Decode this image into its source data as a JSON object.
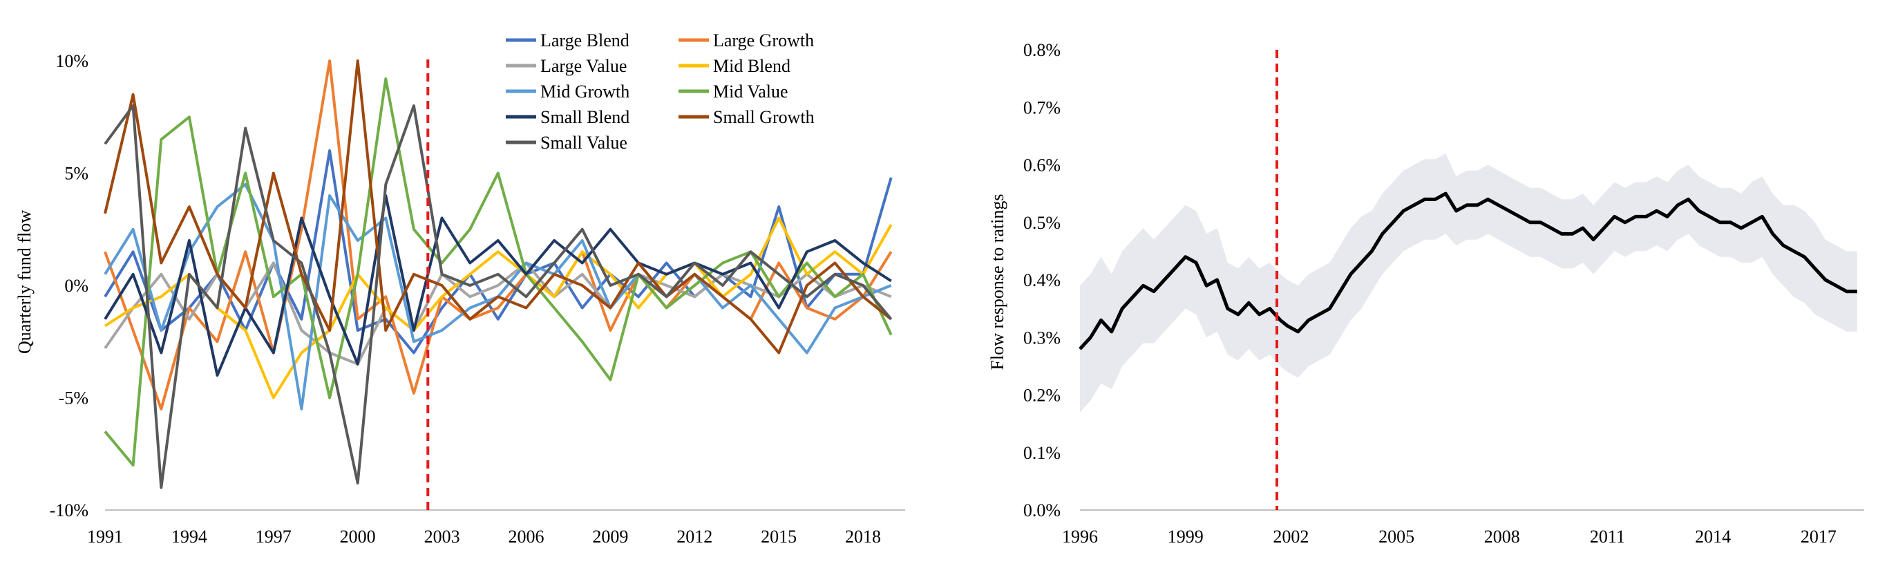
{
  "left_chart": {
    "ylabel": "Quarterly fund flow",
    "y_ticks": [
      "10%",
      "5%",
      "0%",
      "-5%",
      "-10%"
    ],
    "x_ticks": [
      "1991",
      "1994",
      "1997",
      "2000",
      "2003",
      "2006",
      "2009",
      "2012",
      "2015",
      "2018"
    ]
  },
  "right_chart": {
    "ylabel": "Flow response to ratings",
    "y_ticks": [
      "0.8%",
      "0.7%",
      "0.6%",
      "0.5%",
      "0.4%",
      "0.3%",
      "0.2%",
      "0.1%",
      "0.0%"
    ],
    "x_ticks": [
      "1996",
      "1999",
      "2002",
      "2005",
      "2008",
      "2011",
      "2014",
      "2017"
    ]
  },
  "chart_data": [
    {
      "type": "line",
      "title": "",
      "xlabel": "",
      "ylabel": "Quarterly fund flow",
      "xlim": [
        1991,
        2019.5
      ],
      "ylim": [
        -10,
        10
      ],
      "y_unit": "%",
      "grid": false,
      "legend": "top-center",
      "vline": {
        "x": 2002.5,
        "style": "dashed",
        "color": "#e41a1c"
      },
      "series": [
        {
          "name": "Large Blend",
          "color": "#4472c4",
          "x": [
            1991,
            1992,
            1993,
            1994,
            1995,
            1996,
            1997,
            1998,
            1999,
            2000,
            2001,
            2002,
            2003,
            2004,
            2005,
            2006,
            2007,
            2008,
            2009,
            2010,
            2011,
            2012,
            2013,
            2014,
            2015,
            2016,
            2017,
            2018,
            2019
          ],
          "y": [
            -0.5,
            1.5,
            -2.0,
            -1.0,
            0.5,
            -2.0,
            1.0,
            -1.5,
            6.0,
            -2.0,
            -1.5,
            -3.0,
            -1.0,
            0.5,
            -1.5,
            0.5,
            1.0,
            -1.0,
            0.5,
            -0.5,
            1.0,
            -0.5,
            0.5,
            -0.5,
            3.5,
            -1.0,
            0.5,
            0.5,
            4.8
          ]
        },
        {
          "name": "Large Growth",
          "color": "#ed7d31",
          "x": [
            1991,
            1992,
            1993,
            1994,
            1995,
            1996,
            1997,
            1998,
            1999,
            2000,
            2001,
            2002,
            2003,
            2004,
            2005,
            2006,
            2007,
            2008,
            2009,
            2010,
            2011,
            2012,
            2013,
            2014,
            2015,
            2016,
            2017,
            2018,
            2019
          ],
          "y": [
            1.5,
            -2.0,
            -5.5,
            -1.0,
            -2.5,
            1.5,
            -3.0,
            2.5,
            10.0,
            -1.5,
            -0.5,
            -4.8,
            -0.5,
            -1.5,
            -1.0,
            0.5,
            -0.5,
            1.5,
            -2.0,
            0.5,
            -1.0,
            0.5,
            -0.5,
            -1.5,
            1.0,
            -1.0,
            -1.5,
            -0.5,
            1.5
          ]
        },
        {
          "name": "Large Value",
          "color": "#a5a5a5",
          "x": [
            1991,
            1992,
            1993,
            1994,
            1995,
            1996,
            1997,
            1998,
            1999,
            2000,
            2001,
            2002,
            2003,
            2004,
            2005,
            2006,
            2007,
            2008,
            2009,
            2010,
            2011,
            2012,
            2013,
            2014,
            2015,
            2016,
            2017,
            2018,
            2019
          ],
          "y": [
            -2.8,
            -1.0,
            0.5,
            -1.5,
            0.5,
            -1.0,
            1.0,
            -2.0,
            -3.0,
            -3.5,
            -1.0,
            -2.0,
            0.5,
            -0.5,
            0.0,
            1.0,
            -0.5,
            0.5,
            -1.0,
            0.5,
            0.0,
            -0.5,
            0.5,
            0.0,
            -0.5,
            0.5,
            -0.5,
            0.0,
            -0.5
          ]
        },
        {
          "name": "Mid Blend",
          "color": "#ffc000",
          "x": [
            1991,
            1992,
            1993,
            1994,
            1995,
            1996,
            1997,
            1998,
            1999,
            2000,
            2001,
            2002,
            2003,
            2004,
            2005,
            2006,
            2007,
            2008,
            2009,
            2010,
            2011,
            2012,
            2013,
            2014,
            2015,
            2016,
            2017,
            2018,
            2019
          ],
          "y": [
            -1.8,
            -1.0,
            -0.5,
            0.5,
            -1.0,
            -2.0,
            -5.0,
            -3.0,
            -2.0,
            0.5,
            -1.0,
            -2.0,
            -0.5,
            0.5,
            1.5,
            0.5,
            -0.5,
            1.5,
            0.5,
            -1.0,
            0.5,
            1.0,
            -0.5,
            0.5,
            3.0,
            0.5,
            1.5,
            0.5,
            2.7
          ]
        },
        {
          "name": "Mid Growth",
          "color": "#5b9bd5",
          "x": [
            1991,
            1992,
            1993,
            1994,
            1995,
            1996,
            1997,
            1998,
            1999,
            2000,
            2001,
            2002,
            2003,
            2004,
            2005,
            2006,
            2007,
            2008,
            2009,
            2010,
            2011,
            2012,
            2013,
            2014,
            2015,
            2016,
            2017,
            2018,
            2019
          ],
          "y": [
            0.5,
            2.5,
            -2.0,
            1.5,
            3.5,
            4.5,
            2.0,
            -5.5,
            4.0,
            2.0,
            3.0,
            -2.5,
            -2.0,
            -1.0,
            -0.5,
            1.0,
            0.5,
            2.0,
            -1.0,
            0.5,
            -0.5,
            0.5,
            -1.0,
            0.0,
            -1.5,
            -3.0,
            -1.0,
            -0.5,
            0.0
          ]
        },
        {
          "name": "Mid Value",
          "color": "#70ad47",
          "x": [
            1991,
            1992,
            1993,
            1994,
            1995,
            1996,
            1997,
            1998,
            1999,
            2000,
            2001,
            2002,
            2003,
            2004,
            2005,
            2006,
            2007,
            2008,
            2009,
            2010,
            2011,
            2012,
            2013,
            2014,
            2015,
            2016,
            2017,
            2018,
            2019
          ],
          "y": [
            -6.5,
            -8.0,
            6.5,
            7.5,
            0.5,
            5.0,
            -0.5,
            0.5,
            -5.0,
            0.5,
            9.2,
            2.5,
            1.0,
            2.5,
            5.0,
            0.5,
            -1.0,
            -2.5,
            -4.2,
            0.5,
            -1.0,
            0.0,
            1.0,
            1.5,
            -0.5,
            1.0,
            -0.5,
            0.5,
            -2.2
          ]
        },
        {
          "name": "Small Blend",
          "color": "#1f3864",
          "x": [
            1991,
            1992,
            1993,
            1994,
            1995,
            1996,
            1997,
            1998,
            1999,
            2000,
            2001,
            2002,
            2003,
            2004,
            2005,
            2006,
            2007,
            2008,
            2009,
            2010,
            2011,
            2012,
            2013,
            2014,
            2015,
            2016,
            2017,
            2018,
            2019
          ],
          "y": [
            -1.5,
            0.5,
            -3.0,
            2.0,
            -4.0,
            -1.0,
            -3.0,
            3.0,
            -0.5,
            -3.5,
            4.0,
            -2.0,
            3.0,
            1.0,
            2.0,
            0.5,
            2.0,
            1.0,
            2.5,
            1.0,
            0.5,
            1.0,
            0.5,
            1.0,
            -1.0,
            1.5,
            2.0,
            1.0,
            0.2
          ]
        },
        {
          "name": "Small Growth",
          "color": "#9e480e",
          "x": [
            1991,
            1992,
            1993,
            1994,
            1995,
            1996,
            1997,
            1998,
            1999,
            2000,
            2001,
            2002,
            2003,
            2004,
            2005,
            2006,
            2007,
            2008,
            2009,
            2010,
            2011,
            2012,
            2013,
            2014,
            2015,
            2016,
            2017,
            2018,
            2019
          ],
          "y": [
            3.2,
            8.5,
            1.0,
            3.5,
            0.5,
            -1.0,
            5.0,
            0.5,
            -2.0,
            10.0,
            -2.0,
            0.5,
            0.0,
            -1.5,
            -0.5,
            -1.0,
            0.5,
            0.0,
            -1.0,
            1.0,
            -0.5,
            0.5,
            -0.5,
            -1.5,
            -3.0,
            0.0,
            1.0,
            -0.5,
            -1.5
          ]
        },
        {
          "name": "Small Value",
          "color": "#595959",
          "x": [
            1991,
            1992,
            1993,
            1994,
            1995,
            1996,
            1997,
            1998,
            1999,
            2000,
            2001,
            2002,
            2003,
            2004,
            2005,
            2006,
            2007,
            2008,
            2009,
            2010,
            2011,
            2012,
            2013,
            2014,
            2015,
            2016,
            2017,
            2018,
            2019
          ],
          "y": [
            6.3,
            8.0,
            -9.0,
            0.5,
            -1.0,
            7.0,
            2.0,
            1.0,
            -3.0,
            -8.8,
            4.5,
            8.0,
            0.5,
            0.0,
            0.5,
            -0.5,
            1.0,
            2.5,
            0.0,
            0.5,
            -0.5,
            1.0,
            0.0,
            1.5,
            0.5,
            -0.5,
            0.5,
            0.0,
            -1.5
          ]
        }
      ]
    },
    {
      "type": "area",
      "title": "",
      "xlabel": "",
      "ylabel": "Flow response to ratings",
      "xlim": [
        1996,
        2018.3
      ],
      "ylim": [
        0,
        0.8
      ],
      "y_unit": "%",
      "grid": false,
      "vline": {
        "x": 2001.6,
        "style": "dashed",
        "color": "#e41a1c"
      },
      "series": [
        {
          "name": "",
          "kind": "line",
          "color": "#000000",
          "x": [
            1996.0,
            1996.3,
            1996.6,
            1996.9,
            1997.2,
            1997.5,
            1997.8,
            1998.1,
            1998.4,
            1998.7,
            1999.0,
            1999.3,
            1999.6,
            1999.9,
            2000.2,
            2000.5,
            2000.8,
            2001.1,
            2001.4,
            2001.7,
            2001.9,
            2002.2,
            2002.5,
            2002.8,
            2003.1,
            2003.4,
            2003.7,
            2004.0,
            2004.3,
            2004.6,
            2004.9,
            2005.2,
            2005.5,
            2005.8,
            2006.1,
            2006.4,
            2006.7,
            2007.0,
            2007.3,
            2007.6,
            2007.9,
            2008.2,
            2008.5,
            2008.8,
            2009.1,
            2009.4,
            2009.7,
            2010.0,
            2010.3,
            2010.6,
            2010.9,
            2011.2,
            2011.5,
            2011.8,
            2012.1,
            2012.4,
            2012.7,
            2013.0,
            2013.3,
            2013.6,
            2013.9,
            2014.2,
            2014.5,
            2014.8,
            2015.1,
            2015.4,
            2015.7,
            2016.0,
            2016.3,
            2016.6,
            2016.9,
            2017.2,
            2017.5,
            2017.8,
            2018.1
          ],
          "y": [
            0.28,
            0.3,
            0.33,
            0.31,
            0.35,
            0.37,
            0.39,
            0.38,
            0.4,
            0.42,
            0.44,
            0.43,
            0.39,
            0.4,
            0.35,
            0.34,
            0.36,
            0.34,
            0.35,
            0.33,
            0.32,
            0.31,
            0.33,
            0.34,
            0.35,
            0.38,
            0.41,
            0.43,
            0.45,
            0.48,
            0.5,
            0.52,
            0.53,
            0.54,
            0.54,
            0.55,
            0.52,
            0.53,
            0.53,
            0.54,
            0.53,
            0.52,
            0.51,
            0.5,
            0.5,
            0.49,
            0.48,
            0.48,
            0.49,
            0.47,
            0.49,
            0.51,
            0.5,
            0.51,
            0.51,
            0.52,
            0.51,
            0.53,
            0.54,
            0.52,
            0.51,
            0.5,
            0.5,
            0.49,
            0.5,
            0.51,
            0.48,
            0.46,
            0.45,
            0.44,
            0.42,
            0.4,
            0.39,
            0.38,
            0.38
          ]
        },
        {
          "name": "",
          "kind": "band",
          "color": "#e7e9ef",
          "x": [
            1996.0,
            1996.3,
            1996.6,
            1996.9,
            1997.2,
            1997.5,
            1997.8,
            1998.1,
            1998.4,
            1998.7,
            1999.0,
            1999.3,
            1999.6,
            1999.9,
            2000.2,
            2000.5,
            2000.8,
            2001.1,
            2001.4,
            2001.7,
            2001.9,
            2002.2,
            2002.5,
            2002.8,
            2003.1,
            2003.4,
            2003.7,
            2004.0,
            2004.3,
            2004.6,
            2004.9,
            2005.2,
            2005.5,
            2005.8,
            2006.1,
            2006.4,
            2006.7,
            2007.0,
            2007.3,
            2007.6,
            2007.9,
            2008.2,
            2008.5,
            2008.8,
            2009.1,
            2009.4,
            2009.7,
            2010.0,
            2010.3,
            2010.6,
            2010.9,
            2011.2,
            2011.5,
            2011.8,
            2012.1,
            2012.4,
            2012.7,
            2013.0,
            2013.3,
            2013.6,
            2013.9,
            2014.2,
            2014.5,
            2014.8,
            2015.1,
            2015.4,
            2015.7,
            2016.0,
            2016.3,
            2016.6,
            2016.9,
            2017.2,
            2017.5,
            2017.8,
            2018.1
          ],
          "lower": [
            0.17,
            0.19,
            0.22,
            0.21,
            0.25,
            0.27,
            0.29,
            0.29,
            0.31,
            0.33,
            0.35,
            0.34,
            0.3,
            0.31,
            0.27,
            0.26,
            0.28,
            0.26,
            0.27,
            0.25,
            0.24,
            0.23,
            0.25,
            0.26,
            0.27,
            0.3,
            0.33,
            0.35,
            0.38,
            0.41,
            0.43,
            0.45,
            0.46,
            0.47,
            0.47,
            0.48,
            0.46,
            0.47,
            0.47,
            0.48,
            0.47,
            0.46,
            0.45,
            0.44,
            0.44,
            0.43,
            0.42,
            0.42,
            0.43,
            0.41,
            0.43,
            0.45,
            0.44,
            0.45,
            0.45,
            0.46,
            0.45,
            0.47,
            0.48,
            0.46,
            0.45,
            0.44,
            0.44,
            0.43,
            0.43,
            0.44,
            0.41,
            0.39,
            0.37,
            0.36,
            0.34,
            0.33,
            0.32,
            0.31,
            0.31
          ],
          "upper": [
            0.39,
            0.41,
            0.44,
            0.41,
            0.45,
            0.47,
            0.49,
            0.47,
            0.49,
            0.51,
            0.53,
            0.52,
            0.48,
            0.49,
            0.43,
            0.42,
            0.44,
            0.42,
            0.43,
            0.41,
            0.4,
            0.39,
            0.41,
            0.42,
            0.43,
            0.46,
            0.49,
            0.51,
            0.52,
            0.55,
            0.57,
            0.59,
            0.6,
            0.61,
            0.61,
            0.62,
            0.58,
            0.59,
            0.59,
            0.6,
            0.59,
            0.58,
            0.57,
            0.56,
            0.56,
            0.55,
            0.54,
            0.54,
            0.55,
            0.53,
            0.55,
            0.57,
            0.56,
            0.57,
            0.57,
            0.58,
            0.57,
            0.59,
            0.6,
            0.58,
            0.57,
            0.56,
            0.56,
            0.55,
            0.57,
            0.58,
            0.55,
            0.53,
            0.53,
            0.52,
            0.5,
            0.47,
            0.46,
            0.45,
            0.45
          ]
        }
      ]
    }
  ]
}
